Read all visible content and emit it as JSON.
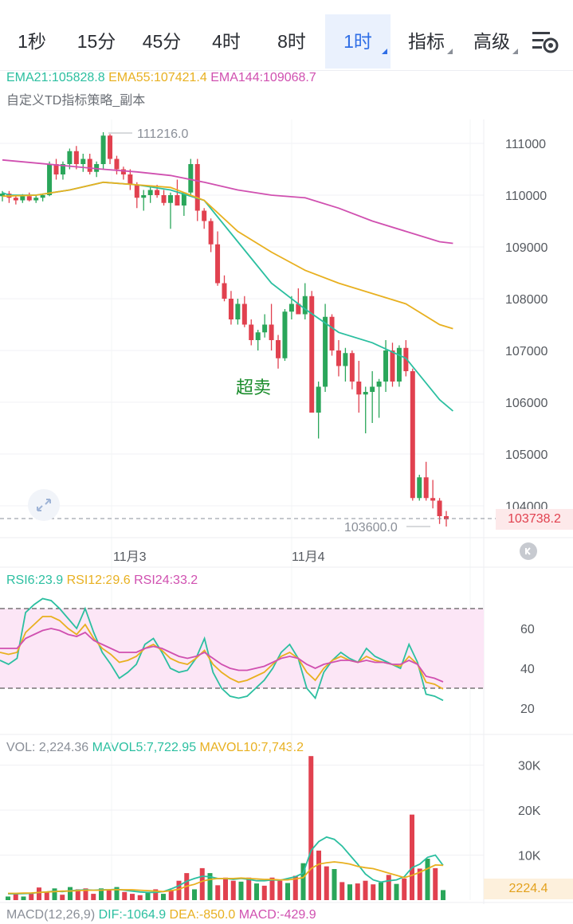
{
  "tabs": [
    {
      "label": "1秒"
    },
    {
      "label": "15分"
    },
    {
      "label": "45分"
    },
    {
      "label": "4时"
    },
    {
      "label": "8时"
    },
    {
      "label": "1时",
      "active": true,
      "dropdown": true
    },
    {
      "label": "指标",
      "dropdown": true
    },
    {
      "label": "高级",
      "dropdown": true
    }
  ],
  "toolbar": {
    "settings_icon": "sliders-gear-icon"
  },
  "ema_legend": {
    "ema21": "EMA21:105828.8",
    "ema55": "EMA55:107421.4",
    "ema144": "EMA144:109068.7"
  },
  "strategy_label": "自定义TD指标策略_副本",
  "price_axis": [
    "111000",
    "110000",
    "109000",
    "108000",
    "107000",
    "106000",
    "105000",
    "104000"
  ],
  "high_label": "111216.0",
  "low_label": "103600.0",
  "current_price": "103738.2",
  "annotation": "超卖",
  "date_labels": [
    "11月3",
    "11月4"
  ],
  "rsi_legend": {
    "rsi6": "RSI6:23.9",
    "rsi12": "RSI12:29.6",
    "rsi24": "RSI24:33.2"
  },
  "rsi_axis": [
    "60",
    "40",
    "20"
  ],
  "vol_legend": {
    "vol": "VOL: 2,224.36",
    "mavol5": "MAVOL5:7,722.95",
    "mavol10": "MAVOL10:7,743.2"
  },
  "vol_axis": [
    "30K",
    "20K",
    "10K"
  ],
  "vol_current": "2224.4",
  "macd_legend": {
    "macd_title": "MACD(12,26,9)",
    "dif": "DIF:-1064.9",
    "dea": "DEA:-850.0",
    "macd": "MACD:-429.9"
  },
  "icons": {
    "expand": "expand-arrows-icon",
    "reset": "reset-zoom-icon"
  },
  "colors": {
    "up": "#2aa65a",
    "down": "#e1414f",
    "ema21": "#2bbfa0",
    "ema55": "#e8b020",
    "ema144": "#d050b0",
    "active_tab": "#2f6ee6"
  },
  "chart_data": [
    {
      "type": "candlestick",
      "title": "",
      "ylim": [
        103500,
        111500
      ],
      "x_labels": [
        "11月3",
        "11月4"
      ],
      "candles": [
        [
          109980,
          110080,
          109880,
          110030
        ],
        [
          110030,
          110080,
          109850,
          109950
        ],
        [
          109950,
          110000,
          109820,
          109900
        ],
        [
          109900,
          110020,
          109850,
          109980
        ],
        [
          109980,
          110050,
          109880,
          109900
        ],
        [
          109900,
          110000,
          109850,
          109950
        ],
        [
          109950,
          110030,
          109880,
          110000
        ],
        [
          110000,
          110650,
          109980,
          110600
        ],
        [
          110600,
          110700,
          110300,
          110400
        ],
        [
          110400,
          110650,
          110300,
          110600
        ],
        [
          110600,
          110900,
          110500,
          110850
        ],
        [
          110850,
          110950,
          110500,
          110600
        ],
        [
          110600,
          110800,
          110450,
          110700
        ],
        [
          110700,
          110800,
          110400,
          110450
        ],
        [
          110450,
          110650,
          110350,
          110600
        ],
        [
          110600,
          111216,
          110500,
          111150
        ],
        [
          111150,
          111180,
          110600,
          110700
        ],
        [
          110700,
          110760,
          110400,
          110500
        ],
        [
          110500,
          110550,
          110300,
          110400
        ],
        [
          110400,
          110500,
          110100,
          110200
        ],
        [
          110200,
          110250,
          109750,
          109950
        ],
        [
          109950,
          110100,
          109700,
          110000
        ],
        [
          110000,
          110150,
          109850,
          110100
        ],
        [
          110100,
          110200,
          109950,
          110000
        ],
        [
          110000,
          110100,
          109800,
          109850
        ],
        [
          109850,
          110050,
          109350,
          110000
        ],
        [
          110000,
          110300,
          109800,
          109800
        ],
        [
          109800,
          110050,
          109600,
          110050
        ],
        [
          110050,
          110700,
          110000,
          110600
        ],
        [
          110600,
          110700,
          109500,
          109700
        ],
        [
          109700,
          109750,
          109350,
          109500
        ],
        [
          109500,
          109550,
          108900,
          109050
        ],
        [
          109050,
          109300,
          108250,
          108300
        ],
        [
          108300,
          108450,
          107950,
          108000
        ],
        [
          108000,
          108150,
          107500,
          107600
        ],
        [
          107600,
          108000,
          107500,
          107900
        ],
        [
          107900,
          108050,
          107450,
          107500
        ],
        [
          107500,
          107600,
          107100,
          107200
        ],
        [
          107200,
          107400,
          107000,
          107350
        ],
        [
          107350,
          107700,
          107250,
          107500
        ],
        [
          107500,
          107900,
          107000,
          107200
        ],
        [
          107200,
          107300,
          106650,
          106850
        ],
        [
          106850,
          107800,
          106800,
          107750
        ],
        [
          107750,
          108050,
          107600,
          107900
        ],
        [
          107900,
          108200,
          107700,
          107700
        ],
        [
          107700,
          108300,
          107600,
          108050
        ],
        [
          108050,
          108150,
          105800,
          105800
        ],
        [
          105800,
          106400,
          105300,
          106300
        ],
        [
          106300,
          107900,
          106200,
          107650
        ],
        [
          107650,
          107700,
          106900,
          107000
        ],
        [
          107000,
          107200,
          106500,
          106700
        ],
        [
          106700,
          107050,
          106400,
          106950
        ],
        [
          106950,
          107000,
          106250,
          106400
        ],
        [
          106400,
          106800,
          105800,
          106150
        ],
        [
          106150,
          106300,
          105400,
          106200
        ],
        [
          106200,
          106600,
          105600,
          106300
        ],
        [
          106300,
          106450,
          105700,
          106400
        ],
        [
          106400,
          107200,
          106200,
          107000
        ],
        [
          107000,
          107150,
          106300,
          106400
        ],
        [
          106400,
          107100,
          106300,
          107050
        ],
        [
          107050,
          107200,
          106500,
          106600
        ],
        [
          106600,
          106650,
          104100,
          104150
        ],
        [
          104150,
          104600,
          104100,
          104550
        ],
        [
          104550,
          104850,
          104100,
          104150
        ],
        [
          104150,
          104500,
          103950,
          104100
        ],
        [
          104100,
          104150,
          103650,
          103800
        ],
        [
          103800,
          103900,
          103600,
          103738.2
        ]
      ],
      "ema21": [
        [
          0,
          110050
        ],
        [
          1,
          110000
        ],
        [
          5,
          110000
        ],
        [
          10,
          110100
        ],
        [
          15,
          110250
        ],
        [
          20,
          110200
        ],
        [
          25,
          110100
        ],
        [
          30,
          109900
        ],
        [
          35,
          109100
        ],
        [
          40,
          108300
        ],
        [
          45,
          107800
        ],
        [
          50,
          107350
        ],
        [
          55,
          107150
        ],
        [
          60,
          106850
        ],
        [
          65,
          106050
        ],
        [
          67,
          105830
        ]
      ],
      "ema55": [
        [
          0,
          109980
        ],
        [
          5,
          110000
        ],
        [
          10,
          110100
        ],
        [
          15,
          110250
        ],
        [
          20,
          110200
        ],
        [
          25,
          110150
        ],
        [
          30,
          109900
        ],
        [
          35,
          109300
        ],
        [
          40,
          108900
        ],
        [
          45,
          108550
        ],
        [
          50,
          108300
        ],
        [
          55,
          108100
        ],
        [
          60,
          107900
        ],
        [
          65,
          107500
        ],
        [
          67,
          107421.4
        ]
      ],
      "ema144": [
        [
          0,
          110680
        ],
        [
          5,
          110620
        ],
        [
          10,
          110560
        ],
        [
          15,
          110500
        ],
        [
          20,
          110450
        ],
        [
          25,
          110380
        ],
        [
          30,
          110250
        ],
        [
          35,
          110100
        ],
        [
          40,
          110000
        ],
        [
          45,
          109950
        ],
        [
          50,
          109750
        ],
        [
          55,
          109500
        ],
        [
          60,
          109300
        ],
        [
          65,
          109100
        ],
        [
          67,
          109068.7
        ]
      ]
    },
    {
      "type": "line",
      "title": "",
      "ylim": [
        10,
        80
      ],
      "series": [
        {
          "name": "RSI6",
          "values": [
            44,
            42,
            45,
            68,
            72,
            75,
            74,
            70,
            65,
            60,
            70,
            58,
            48,
            42,
            35,
            38,
            42,
            52,
            55,
            48,
            40,
            38,
            39,
            45,
            55,
            38,
            30,
            26,
            25,
            26,
            30,
            34,
            40,
            48,
            52,
            45,
            30,
            25,
            38,
            44,
            48,
            45,
            43,
            50,
            46,
            44,
            42,
            40,
            52,
            43,
            27,
            26,
            23.9
          ]
        },
        {
          "name": "RSI12",
          "values": [
            48,
            47,
            48,
            58,
            62,
            66,
            66,
            64,
            60,
            57,
            62,
            55,
            50,
            47,
            43,
            44,
            46,
            50,
            52,
            49,
            45,
            43,
            42,
            45,
            49,
            42,
            38,
            35,
            33,
            34,
            36,
            38,
            42,
            46,
            48,
            45,
            38,
            34,
            40,
            44,
            46,
            44,
            43,
            46,
            44,
            43,
            42,
            41,
            46,
            42,
            33,
            32,
            29.6
          ]
        },
        {
          "name": "RSI24",
          "values": [
            50,
            50,
            50,
            55,
            57,
            59,
            60,
            59,
            57,
            56,
            58,
            54,
            52,
            50,
            48,
            48,
            48,
            50,
            51,
            50,
            48,
            46,
            45,
            46,
            48,
            45,
            42,
            40,
            39,
            39,
            40,
            41,
            43,
            45,
            46,
            45,
            42,
            40,
            42,
            43,
            44,
            44,
            43,
            44,
            43,
            43,
            42,
            42,
            44,
            42,
            36,
            35,
            33.2
          ]
        }
      ]
    },
    {
      "type": "bar",
      "title": "",
      "ylim": [
        0,
        33000
      ],
      "values": [
        800,
        1500,
        800,
        1400,
        2800,
        1800,
        2600,
        1200,
        2900,
        2400,
        2600,
        1400,
        2600,
        2400,
        2900,
        1800,
        1400,
        1100,
        1800,
        2400,
        1400,
        2300,
        4300,
        6000,
        2400,
        7100,
        6000,
        3300,
        5000,
        4300,
        4100,
        5000,
        3700,
        3200,
        5000,
        4300,
        3800,
        5400,
        8200,
        32000,
        11000,
        7500,
        6900,
        4000,
        3500,
        3700,
        4300,
        3500,
        3900,
        5600,
        3600,
        4800,
        19000,
        7000,
        9200,
        7100,
        2224.36
      ],
      "mavol5": [
        1400,
        1400,
        1450,
        1500,
        1700,
        1800,
        2000,
        1900,
        2100,
        2200,
        2300,
        2200,
        2300,
        2300,
        2400,
        2200,
        2000,
        1800,
        1700,
        1700,
        1900,
        2500,
        3200,
        4200,
        4800,
        5300,
        5200,
        4800,
        4800,
        4600,
        4800,
        4600,
        4300,
        4300,
        4500,
        4400,
        4800,
        5200,
        6000,
        11000,
        13000,
        14000,
        13500,
        12000,
        10000,
        8000,
        5800,
        4500,
        4000,
        4300,
        4500,
        5200,
        7200,
        8000,
        9500,
        10000,
        7722.95
      ],
      "mavol10": [
        1500,
        1500,
        1550,
        1600,
        1700,
        1800,
        1900,
        2000,
        2000,
        2100,
        2200,
        2200,
        2200,
        2300,
        2300,
        2300,
        2300,
        2200,
        2100,
        2000,
        1900,
        2100,
        2400,
        3100,
        3500,
        4200,
        4600,
        4800,
        4800,
        4800,
        4900,
        4800,
        4700,
        4600,
        4600,
        4500,
        4500,
        4700,
        5000,
        7000,
        8000,
        8300,
        8500,
        8300,
        8000,
        7500,
        7200,
        7000,
        6500,
        6000,
        5500,
        5000,
        5500,
        6200,
        7000,
        7800,
        7743.2
      ]
    }
  ]
}
